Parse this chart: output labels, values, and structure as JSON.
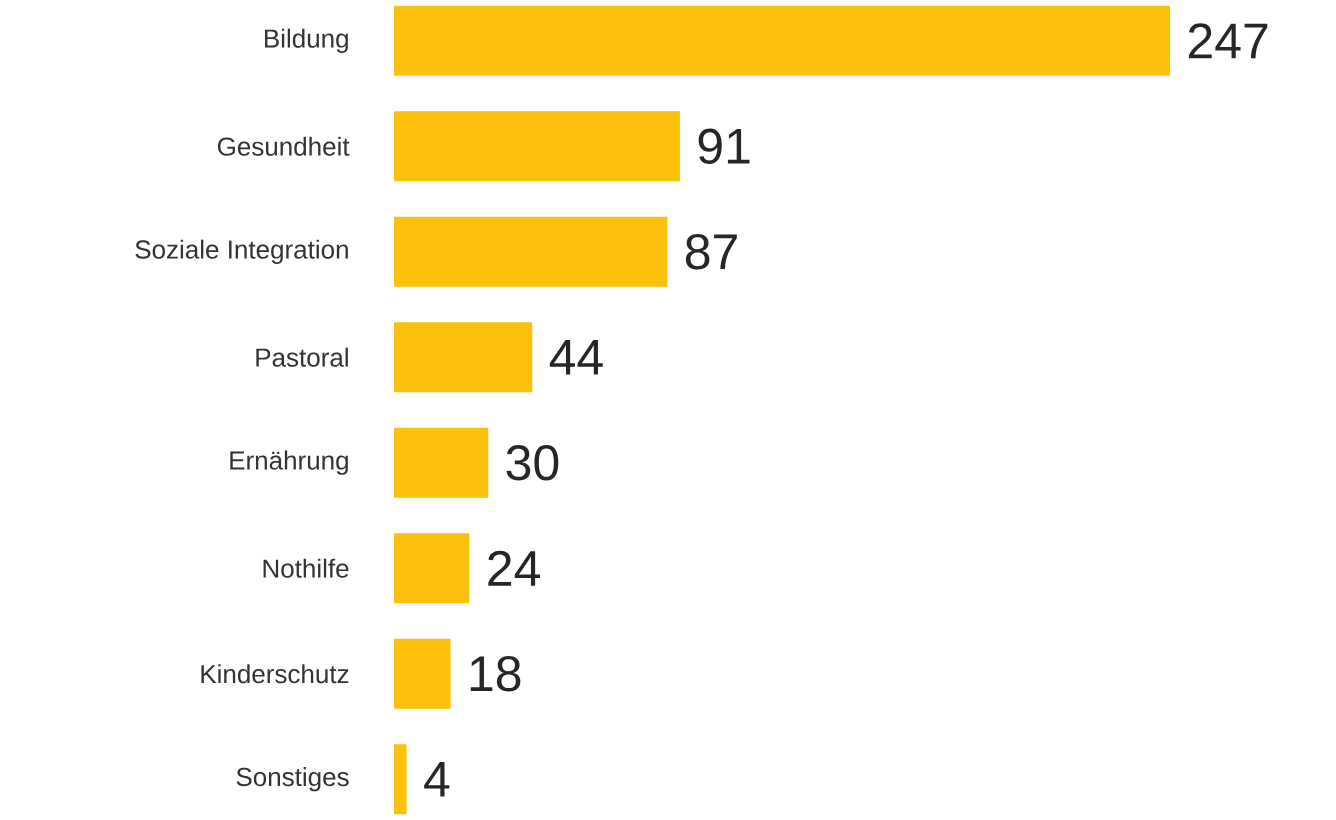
{
  "chart_data": {
    "type": "bar",
    "orientation": "horizontal",
    "categories": [
      "Bildung",
      "Gesundheit",
      "Soziale Integration",
      "Pastoral",
      "Ernährung",
      "Nothilfe",
      "Kinderschutz",
      "Sonstiges"
    ],
    "values": [
      247,
      91,
      87,
      44,
      30,
      24,
      18,
      4
    ],
    "color": "#fcc10c",
    "data_labels": true
  }
}
